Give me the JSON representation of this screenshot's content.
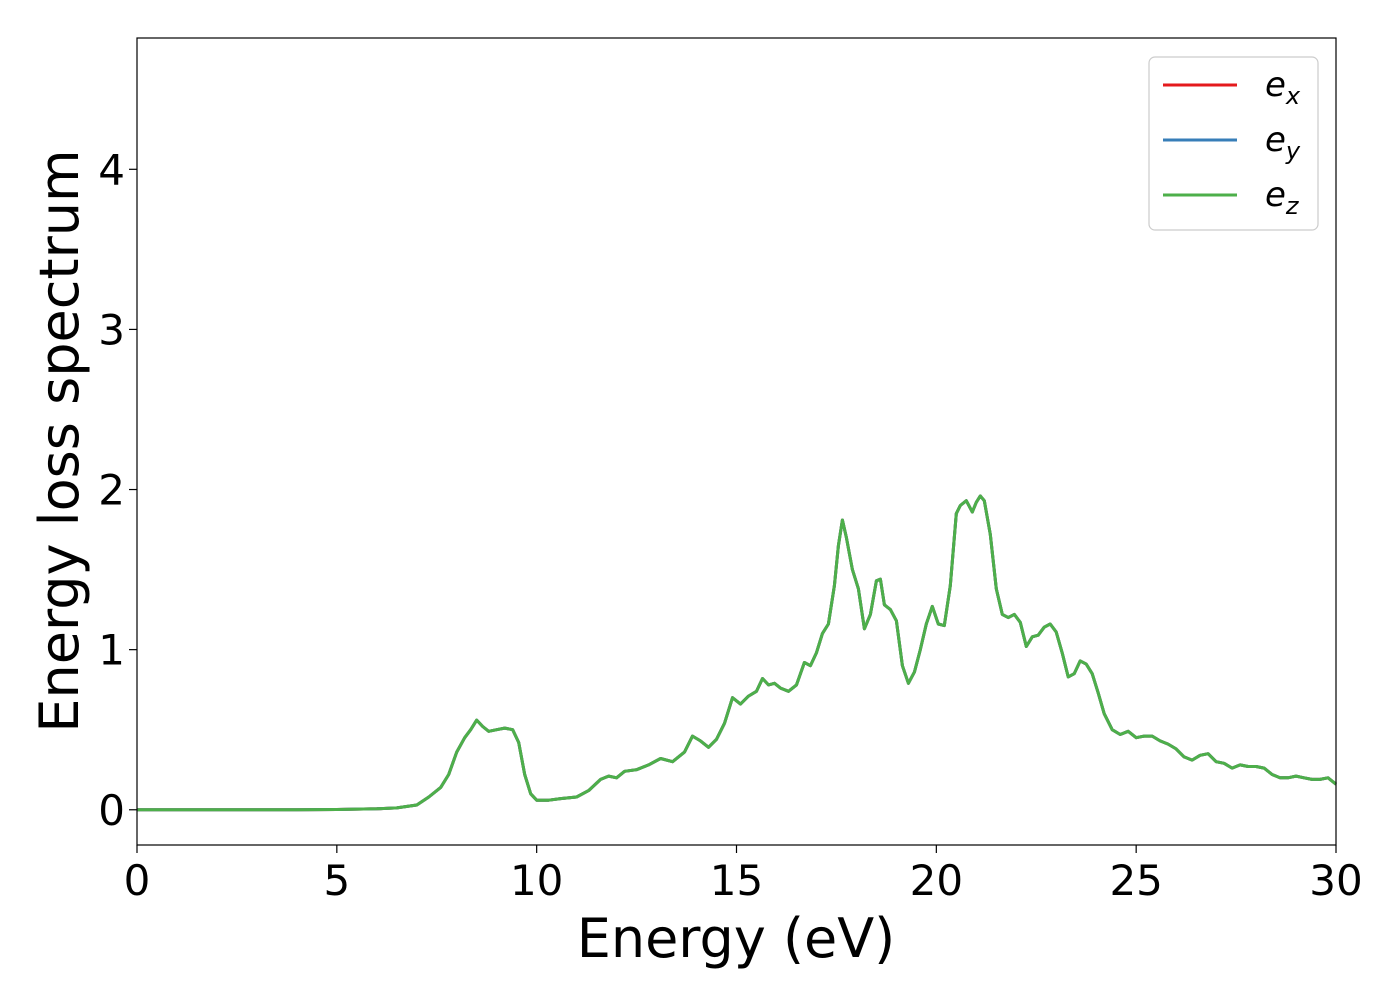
{
  "chart_data": {
    "type": "line",
    "title": "",
    "xlabel": "Energy (eV)",
    "ylabel": "Energy loss spectrum",
    "xlim": [
      0,
      30
    ],
    "ylim": [
      -0.22,
      4.82
    ],
    "xticks": [
      0,
      5,
      10,
      15,
      20,
      25,
      30
    ],
    "yticks": [
      0,
      1,
      2,
      3,
      4
    ],
    "grid": false,
    "legend_position": "top-right",
    "x": [
      0,
      1,
      2,
      3,
      4,
      5,
      6,
      6.5,
      7,
      7.3,
      7.6,
      7.8,
      8.0,
      8.2,
      8.35,
      8.5,
      8.65,
      8.8,
      9.0,
      9.2,
      9.4,
      9.55,
      9.7,
      9.85,
      10.0,
      10.3,
      10.6,
      11.0,
      11.3,
      11.6,
      11.8,
      12.0,
      12.2,
      12.5,
      12.8,
      13.1,
      13.4,
      13.7,
      13.9,
      14.1,
      14.3,
      14.5,
      14.7,
      14.9,
      15.1,
      15.3,
      15.5,
      15.65,
      15.8,
      15.95,
      16.1,
      16.3,
      16.5,
      16.7,
      16.85,
      17.0,
      17.15,
      17.3,
      17.45,
      17.55,
      17.65,
      17.75,
      17.9,
      18.05,
      18.2,
      18.35,
      18.5,
      18.6,
      18.7,
      18.85,
      19.0,
      19.15,
      19.3,
      19.45,
      19.6,
      19.75,
      19.9,
      20.05,
      20.2,
      20.35,
      20.5,
      20.6,
      20.75,
      20.9,
      21.0,
      21.1,
      21.2,
      21.35,
      21.5,
      21.65,
      21.8,
      21.95,
      22.1,
      22.25,
      22.4,
      22.55,
      22.7,
      22.85,
      23.0,
      23.15,
      23.3,
      23.45,
      23.6,
      23.75,
      23.9,
      24.05,
      24.2,
      24.4,
      24.6,
      24.8,
      25.0,
      25.2,
      25.4,
      25.6,
      25.8,
      26.0,
      26.2,
      26.4,
      26.6,
      26.8,
      27.0,
      27.2,
      27.4,
      27.6,
      27.8,
      28.0,
      28.2,
      28.4,
      28.6,
      28.8,
      29.0,
      29.2,
      29.4,
      29.6,
      29.8,
      30.0
    ],
    "values": [
      0.0,
      0.0,
      0.0,
      0.0,
      0.0,
      0.002,
      0.006,
      0.012,
      0.03,
      0.08,
      0.14,
      0.22,
      0.36,
      0.45,
      0.5,
      0.56,
      0.52,
      0.49,
      0.5,
      0.51,
      0.5,
      0.42,
      0.22,
      0.1,
      0.06,
      0.06,
      0.07,
      0.08,
      0.12,
      0.19,
      0.21,
      0.2,
      0.24,
      0.25,
      0.28,
      0.32,
      0.3,
      0.36,
      0.46,
      0.43,
      0.39,
      0.44,
      0.54,
      0.7,
      0.66,
      0.71,
      0.74,
      0.82,
      0.78,
      0.79,
      0.76,
      0.74,
      0.78,
      0.92,
      0.9,
      0.98,
      1.1,
      1.16,
      1.4,
      1.65,
      1.81,
      1.7,
      1.5,
      1.38,
      1.13,
      1.22,
      1.43,
      1.44,
      1.28,
      1.25,
      1.18,
      0.9,
      0.79,
      0.86,
      1.0,
      1.16,
      1.27,
      1.16,
      1.15,
      1.4,
      1.85,
      1.9,
      1.93,
      1.86,
      1.92,
      1.96,
      1.93,
      1.72,
      1.38,
      1.22,
      1.2,
      1.22,
      1.17,
      1.02,
      1.08,
      1.09,
      1.14,
      1.16,
      1.11,
      0.98,
      0.83,
      0.85,
      0.93,
      0.91,
      0.85,
      0.73,
      0.6,
      0.5,
      0.47,
      0.49,
      0.45,
      0.46,
      0.46,
      0.43,
      0.41,
      0.38,
      0.33,
      0.31,
      0.34,
      0.35,
      0.3,
      0.29,
      0.26,
      0.28,
      0.27,
      0.27,
      0.26,
      0.22,
      0.2,
      0.2,
      0.21,
      0.2,
      0.19,
      0.19,
      0.2,
      0.16
    ],
    "series": [
      {
        "name": "e_x",
        "label_base": "e",
        "label_sub": "x",
        "color": "#e41a1c",
        "same_as": "values"
      },
      {
        "name": "e_y",
        "label_base": "e",
        "label_sub": "y",
        "color": "#377eb8",
        "same_as": "values"
      },
      {
        "name": "e_z",
        "label_base": "e",
        "label_sub": "z",
        "color": "#4daf4a",
        "same_as": "values"
      }
    ]
  }
}
